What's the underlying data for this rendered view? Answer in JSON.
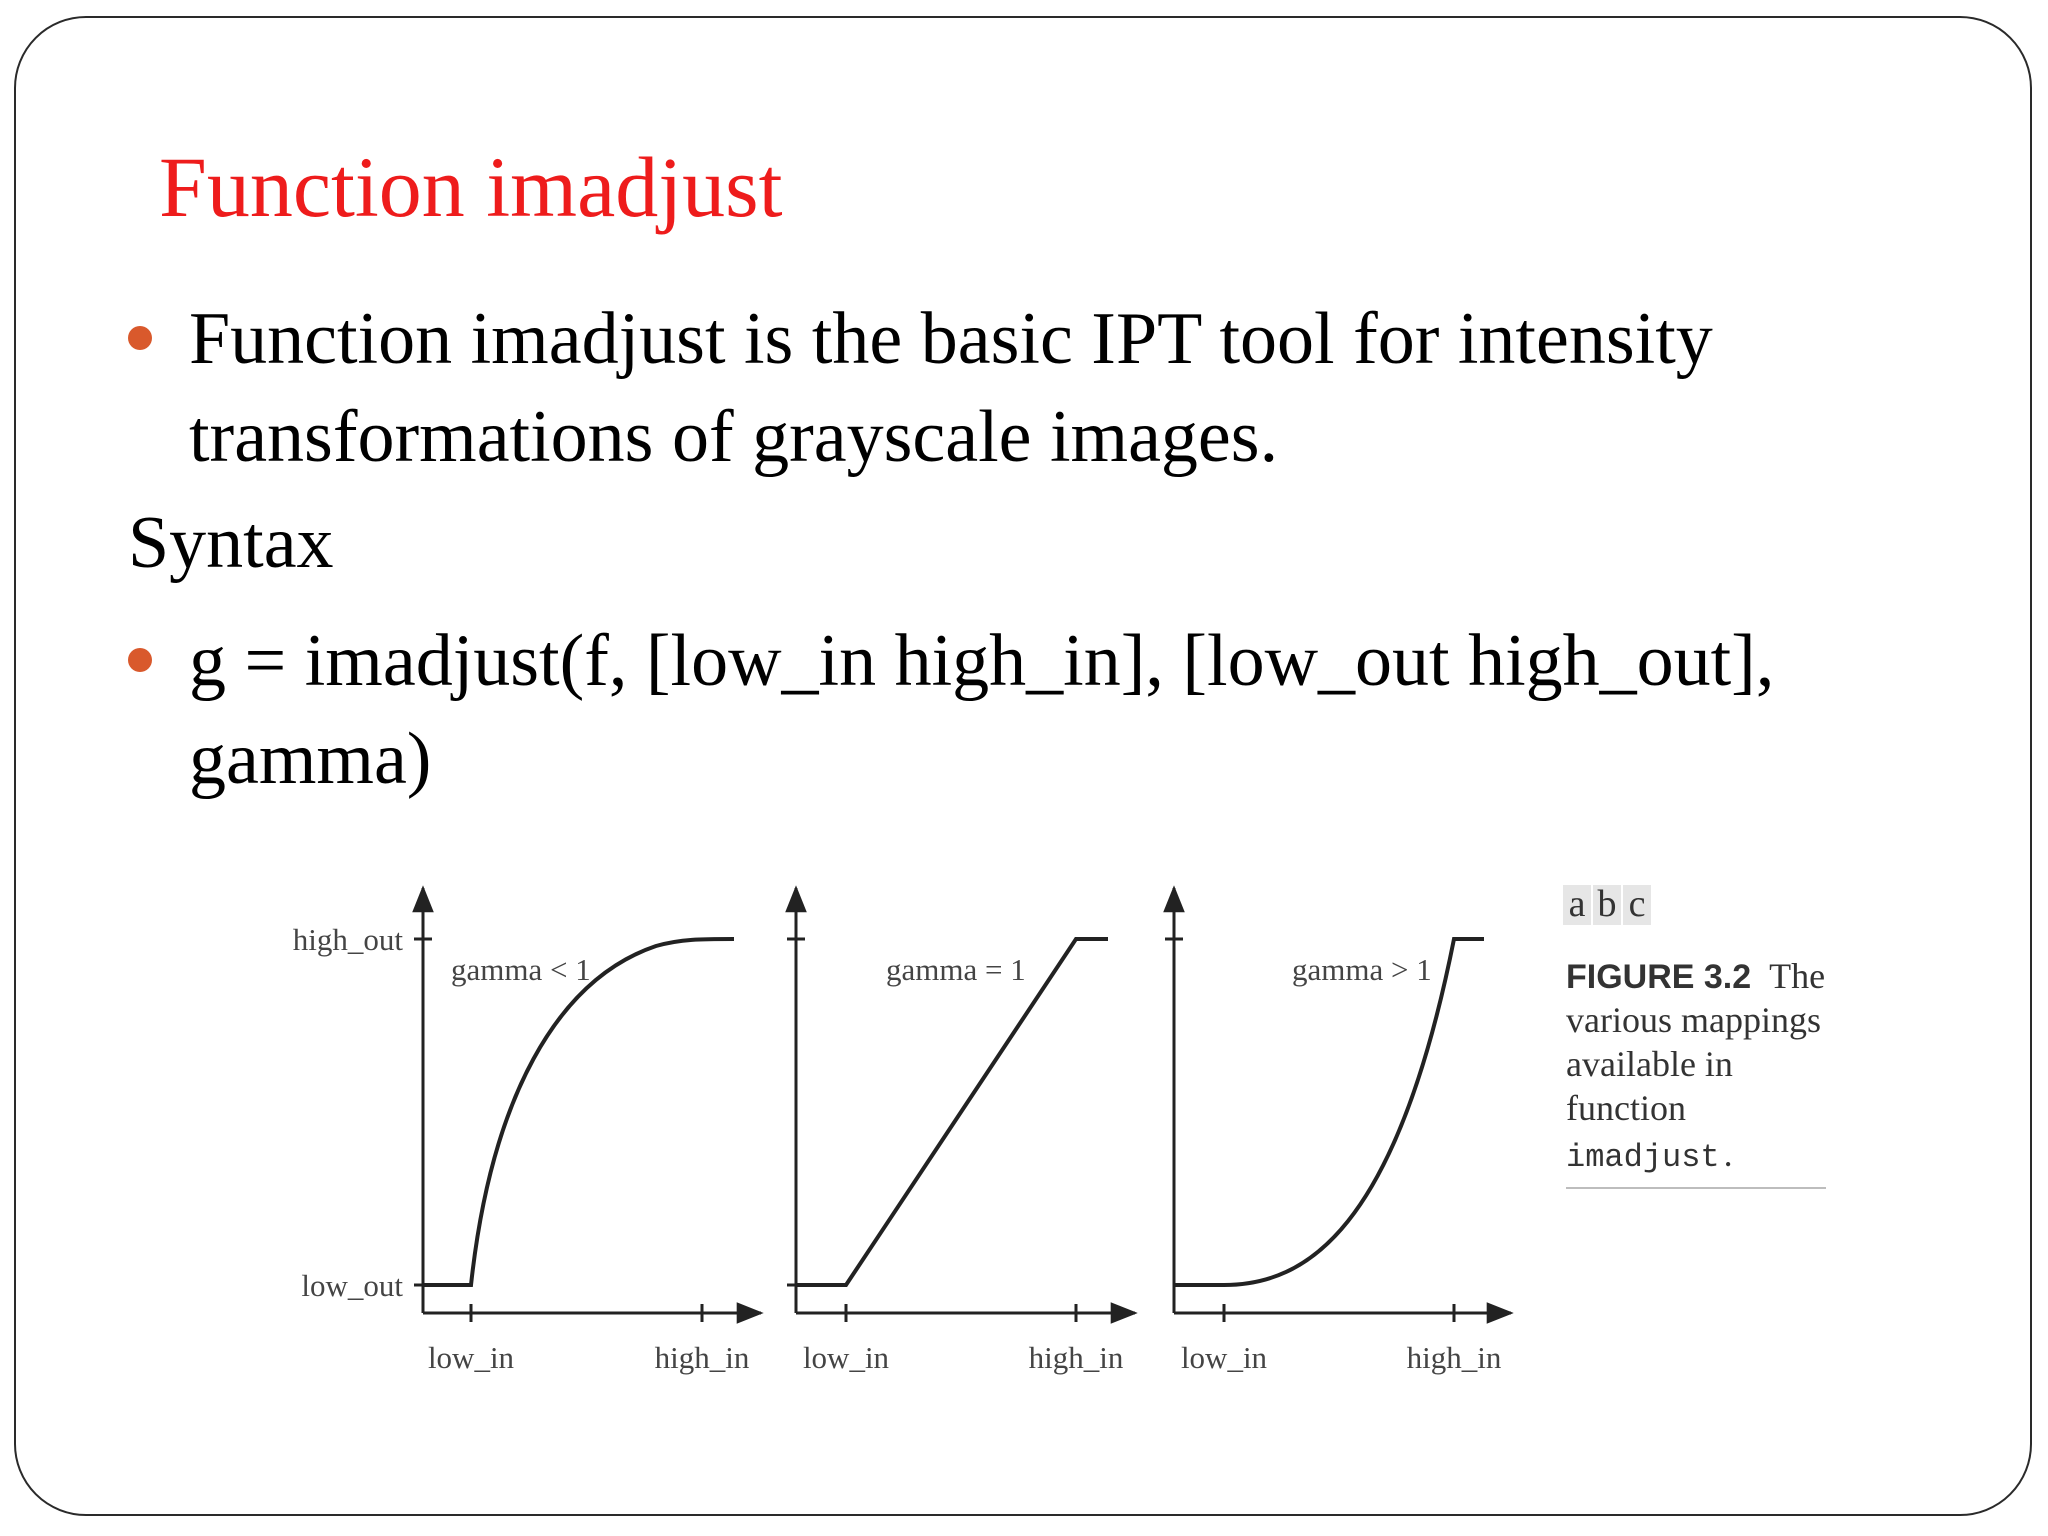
{
  "slide": {
    "title": "Function imadjust",
    "bullets": [
      {
        "lines": [
          "Function imadjust is the basic IPT tool for intensity",
          "transformations of grayscale images."
        ]
      }
    ],
    "syntax_label": "Syntax",
    "syntax_bullet": {
      "lines": [
        "g = imadjust(f, [low_in high_in], [low_out high_out],",
        "gamma)"
      ]
    },
    "colors": {
      "title": "#ee1c1c",
      "bullet": "#d9592c",
      "text": "#000000"
    }
  },
  "figure": {
    "panels": [
      {
        "curve_label": "gamma < 1",
        "y_labels": [
          "high_out",
          "low_out"
        ],
        "x_labels": [
          "low_in",
          "high_in"
        ]
      },
      {
        "curve_label": "gamma = 1",
        "x_labels": [
          "low_in",
          "high_in"
        ]
      },
      {
        "curve_label": "gamma > 1",
        "x_labels": [
          "low_in",
          "high_in"
        ]
      }
    ],
    "caption": {
      "tags": [
        "a",
        "b",
        "c"
      ],
      "heading": "FIGURE 3.2",
      "heading_rest": "The",
      "lines": [
        "various mappings",
        "available in",
        "function"
      ],
      "code": "imadjust",
      "code_suffix": "."
    }
  }
}
